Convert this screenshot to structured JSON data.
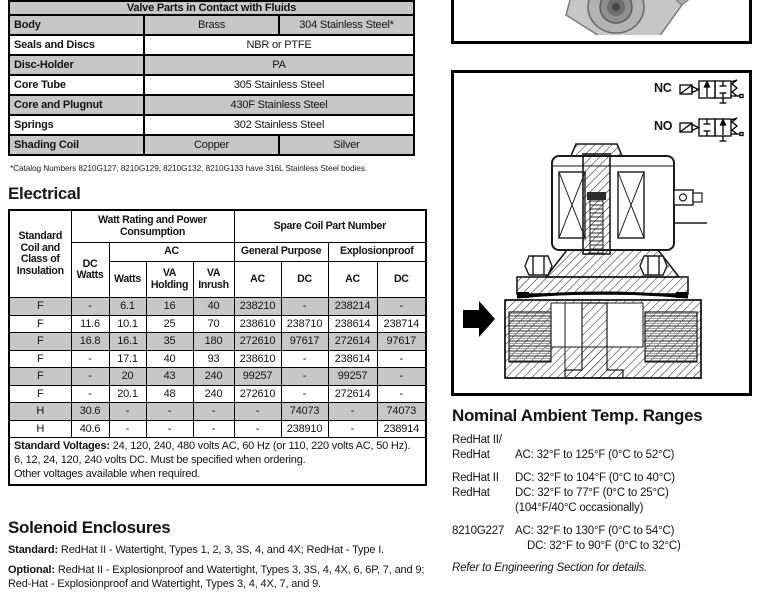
{
  "materials_table": {
    "title": "Valve Parts in Contact with Fluids",
    "rows": [
      {
        "label": "Body",
        "values": [
          "Brass",
          "304 Stainless Steel*"
        ]
      },
      {
        "label": "Seals and Discs",
        "values": [
          "NBR or PTFE"
        ]
      },
      {
        "label": "Disc-Holder",
        "values": [
          "PA"
        ]
      },
      {
        "label": "Core Tube",
        "values": [
          "305 Stainless Steel"
        ]
      },
      {
        "label": "Core and Plugnut",
        "values": [
          "430F Stainless Steel"
        ]
      },
      {
        "label": "Springs",
        "values": [
          "302 Stainless Steel"
        ]
      },
      {
        "label": "Shading Coil",
        "values": [
          "Copper",
          "Silver"
        ]
      }
    ],
    "footnote": "*Catalog Numbers 8210G127, 8210G129, 8210G132, 8210G133 have 316L Stainless Steel bodies."
  },
  "electrical": {
    "heading": "Electrical",
    "table": {
      "col1_header": "Standard Coil and Class of Insulation",
      "group_watt": "Watt Rating and Power Consumption",
      "group_spare": "Spare Coil Part Number",
      "dc_watts": "DC Watts",
      "ac_group": "AC",
      "general_purpose": "General Purpose",
      "explosionproof": "Explosionproof",
      "sub_headers": [
        "Watts",
        "VA Holding",
        "VA Inrush",
        "AC",
        "DC",
        "AC",
        "DC"
      ],
      "rows": [
        [
          "F",
          "-",
          "6.1",
          "16",
          "40",
          "238210",
          "-",
          "238214",
          "-"
        ],
        [
          "F",
          "11.6",
          "10.1",
          "25",
          "70",
          "238610",
          "238710",
          "238614",
          "238714"
        ],
        [
          "F",
          "16.8",
          "16.1",
          "35",
          "180",
          "272610",
          "97617",
          "272614",
          "97617"
        ],
        [
          "F",
          "-",
          "17.1",
          "40",
          "93",
          "238610",
          "-",
          "238614",
          "-"
        ],
        [
          "F",
          "-",
          "20",
          "43",
          "240",
          "99257",
          "-",
          "99257",
          "-"
        ],
        [
          "F",
          "-",
          "20.1",
          "48",
          "240",
          "272610",
          "-",
          "272614",
          "-"
        ],
        [
          "H",
          "30.6",
          "-",
          "-",
          "-",
          "-",
          "74073",
          "-",
          "74073"
        ],
        [
          "H",
          "40.6",
          "-",
          "-",
          "-",
          "-",
          "238910",
          "-",
          "238914"
        ]
      ],
      "footer_bold": "Standard Voltages:",
      "footer_text": " 24, 120, 240, 480 volts AC, 60 Hz (or 110, 220 volts AC, 50 Hz). 6, 12, 24, 120, 240 volts DC. Must be specified when ordering.",
      "footer_line2": "Other voltages available when required."
    }
  },
  "enclosures": {
    "heading": "Solenoid Enclosures",
    "standard_label": "Standard:",
    "standard_text": " RedHat II - Watertight, Types 1, 2, 3, 3S, 4, and 4X; RedHat - Type I.",
    "optional_label": "Optional:",
    "optional_text": " RedHat II - Explosionproof and Watertight, Types 3, 3S, 4, 4X, 6, 6P, 7, and 9; Red-Hat - Explosionproof and Watertight, Types 3, 4, 4X, 7, and 9."
  },
  "diagram": {
    "nc_label": "NC",
    "no_label": "NO"
  },
  "temp_ranges": {
    "heading": "Nominal Ambient Temp. Ranges",
    "blocks": [
      {
        "lines": [
          {
            "name": "RedHat II/",
            "value": ""
          },
          {
            "name": "RedHat",
            "value": "AC: 32°F to 125°F (0°C to 52°C)"
          }
        ]
      },
      {
        "lines": [
          {
            "name": "RedHat II",
            "value": "DC: 32°F to 104°F (0°C to 40°C)"
          },
          {
            "name": "RedHat",
            "value": "DC: 32°F to 77°F (0°C to 25°C)"
          },
          {
            "name": "",
            "value": "(104°F/40°C occasionally)"
          }
        ]
      },
      {
        "lines": [
          {
            "name": "8210G227",
            "value": "AC: 32°F to 130°F (0°C to 54°C)"
          },
          {
            "name": "",
            "value": "DC: 32°F to 90°F (0°C to 32°C)"
          }
        ]
      }
    ],
    "footer": "Refer to Engineering Section for details."
  },
  "colors": {
    "row_shade": "#c7c7c7",
    "border": "#000000",
    "text": "#141414"
  }
}
